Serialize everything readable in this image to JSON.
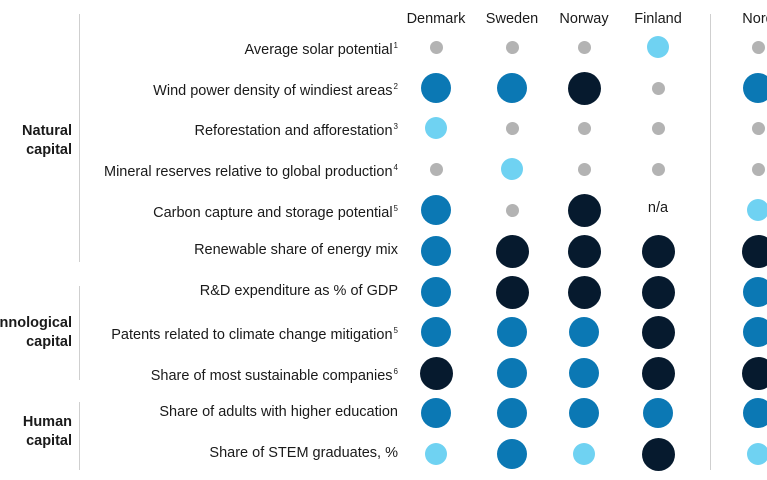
{
  "chart_data": {
    "type": "table",
    "columns": [
      "Denmark",
      "Sweden",
      "Norway",
      "Finland",
      "Nord"
    ],
    "groups": [
      {
        "label": [
          "Natural",
          "capital"
        ]
      },
      {
        "label": [
          "nnological",
          "capital"
        ]
      },
      {
        "label": [
          "Human",
          "capital"
        ]
      }
    ],
    "rows": [
      {
        "label": "Average solar potential",
        "note": "1",
        "values": [
          "low",
          "low",
          "low",
          "medium",
          "low"
        ]
      },
      {
        "label": "Wind power density of windiest areas",
        "note": "2",
        "values": [
          "high",
          "high",
          "very-high",
          "low",
          "high"
        ]
      },
      {
        "label": "Reforestation and afforestation",
        "note": "3",
        "values": [
          "medium",
          "low",
          "low",
          "low",
          "low"
        ]
      },
      {
        "label": "Mineral reserves relative to global production",
        "note": "4",
        "values": [
          "low",
          "medium",
          "low",
          "low",
          "low"
        ]
      },
      {
        "label": "Carbon capture and storage potential",
        "note": "5",
        "values": [
          "high",
          "low",
          "very-high",
          "n/a",
          "medium"
        ]
      },
      {
        "label": "Renewable share of energy mix",
        "note": "",
        "values": [
          "high",
          "very-high",
          "very-high",
          "very-high",
          "very-high"
        ]
      },
      {
        "label": "R&D expenditure as % of GDP",
        "note": "",
        "values": [
          "high",
          "very-high",
          "very-high",
          "very-high",
          "high"
        ]
      },
      {
        "label": "Patents related to climate change mitigation",
        "note": "5",
        "values": [
          "high",
          "high",
          "high",
          "very-high",
          "high"
        ]
      },
      {
        "label": "Share of most sustainable companies",
        "note": "6",
        "values": [
          "very-high",
          "high",
          "high",
          "very-high",
          "very-high"
        ]
      },
      {
        "label": "Share of adults with higher education",
        "note": "",
        "values": [
          "high",
          "high",
          "high",
          "high",
          "high"
        ]
      },
      {
        "label": "Share of STEM graduates, %",
        "note": "",
        "values": [
          "medium",
          "high",
          "medium",
          "very-high",
          "medium"
        ]
      }
    ],
    "levels": {
      "low": {
        "color": "#b3b3b3",
        "size": 13
      },
      "medium": {
        "color": "#6fd2f2",
        "size": 22
      },
      "high": {
        "color": "#0b78b4",
        "size": 30
      },
      "very-high": {
        "color": "#061a2e",
        "size": 33
      }
    }
  }
}
